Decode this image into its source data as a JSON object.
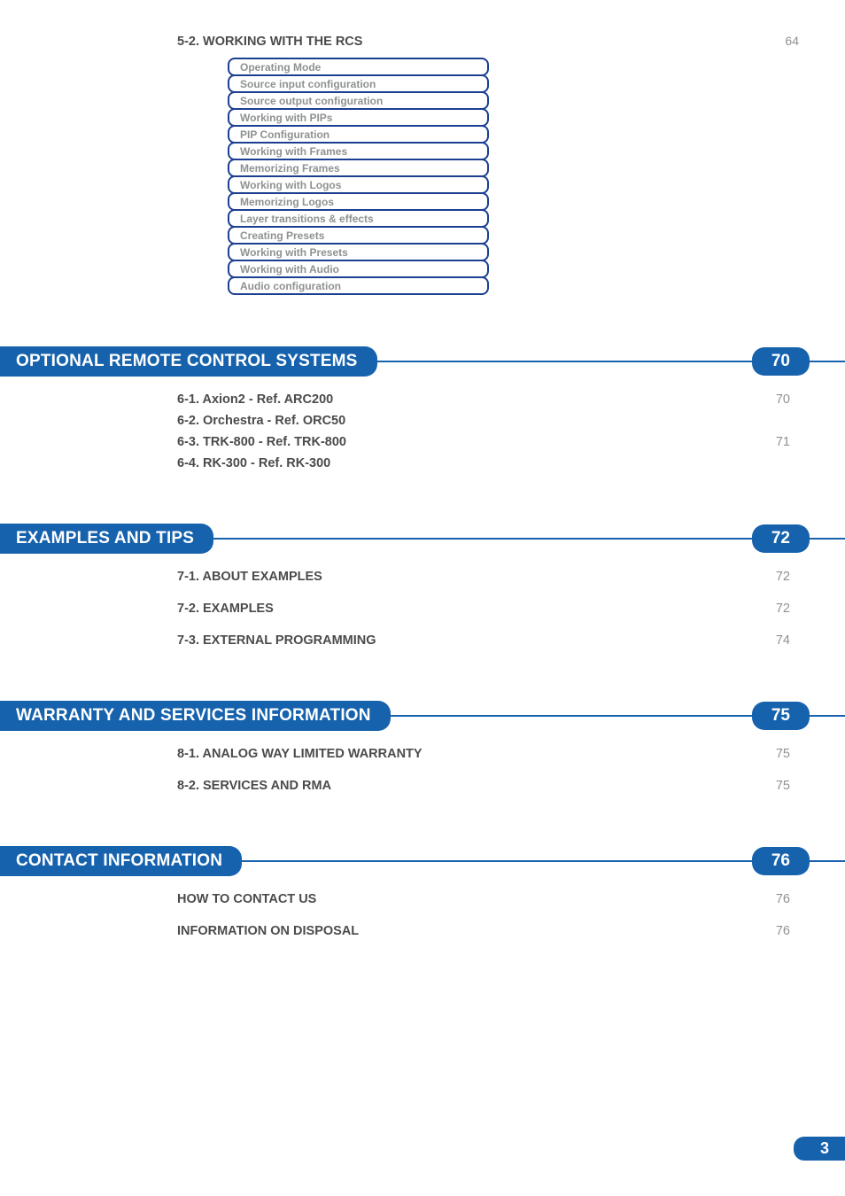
{
  "colors": {
    "blue_dark": "#1b3f91",
    "blue": "#1662ad",
    "gray_text": "#8e9192",
    "body_text": "#4b4b4b",
    "white": "#ffffff"
  },
  "typography": {
    "body_font": "Arial",
    "section_title_size": 19,
    "entry_size": 14.5,
    "box_item_size": 12
  },
  "top_section": {
    "title": "5-2. WORKING WITH THE RCS",
    "page": "64",
    "items": [
      "Operating Mode",
      "Source input configuration",
      "Source output configuration",
      "Working with PIPs",
      "PIP Configuration",
      "Working with Frames",
      "Memorizing Frames",
      "Working with Logos",
      "Memorizing Logos",
      "Layer transitions & effects",
      "Creating Presets",
      "Working with Presets",
      "Working with Audio",
      "Audio configuration"
    ]
  },
  "sections": [
    {
      "title": "OPTIONAL REMOTE CONTROL SYSTEMS",
      "page": "70",
      "spacing": "tight",
      "entries": [
        {
          "title": "6-1. Axion2 - Ref. ARC200",
          "page": "70"
        },
        {
          "title": "6-2. Orchestra - Ref. ORC50",
          "page": ""
        },
        {
          "title": "6-3. TRK-800 - Ref. TRK-800",
          "page": "71"
        },
        {
          "title": "6-4. RK-300 - Ref. RK-300",
          "page": ""
        }
      ]
    },
    {
      "title": "EXAMPLES AND TIPS",
      "page": "72",
      "spacing": "wide",
      "entries": [
        {
          "title": "7-1. ABOUT EXAMPLES",
          "page": "72"
        },
        {
          "title": "7-2. EXAMPLES",
          "page": "72"
        },
        {
          "title": "7-3. EXTERNAL PROGRAMMING",
          "page": "74"
        }
      ]
    },
    {
      "title": "WARRANTY AND SERVICES INFORMATION",
      "page": "75",
      "spacing": "wide",
      "entries": [
        {
          "title": "8-1. ANALOG WAY LIMITED WARRANTY",
          "page": "75"
        },
        {
          "title": "8-2. SERVICES AND RMA",
          "page": "75"
        }
      ]
    },
    {
      "title": "CONTACT INFORMATION",
      "page": "76",
      "spacing": "wide",
      "entries": [
        {
          "title": "HOW TO CONTACT US",
          "page": "76"
        },
        {
          "title": "INFORMATION ON DISPOSAL",
          "page": "76"
        }
      ]
    }
  ],
  "footer_page": "3"
}
